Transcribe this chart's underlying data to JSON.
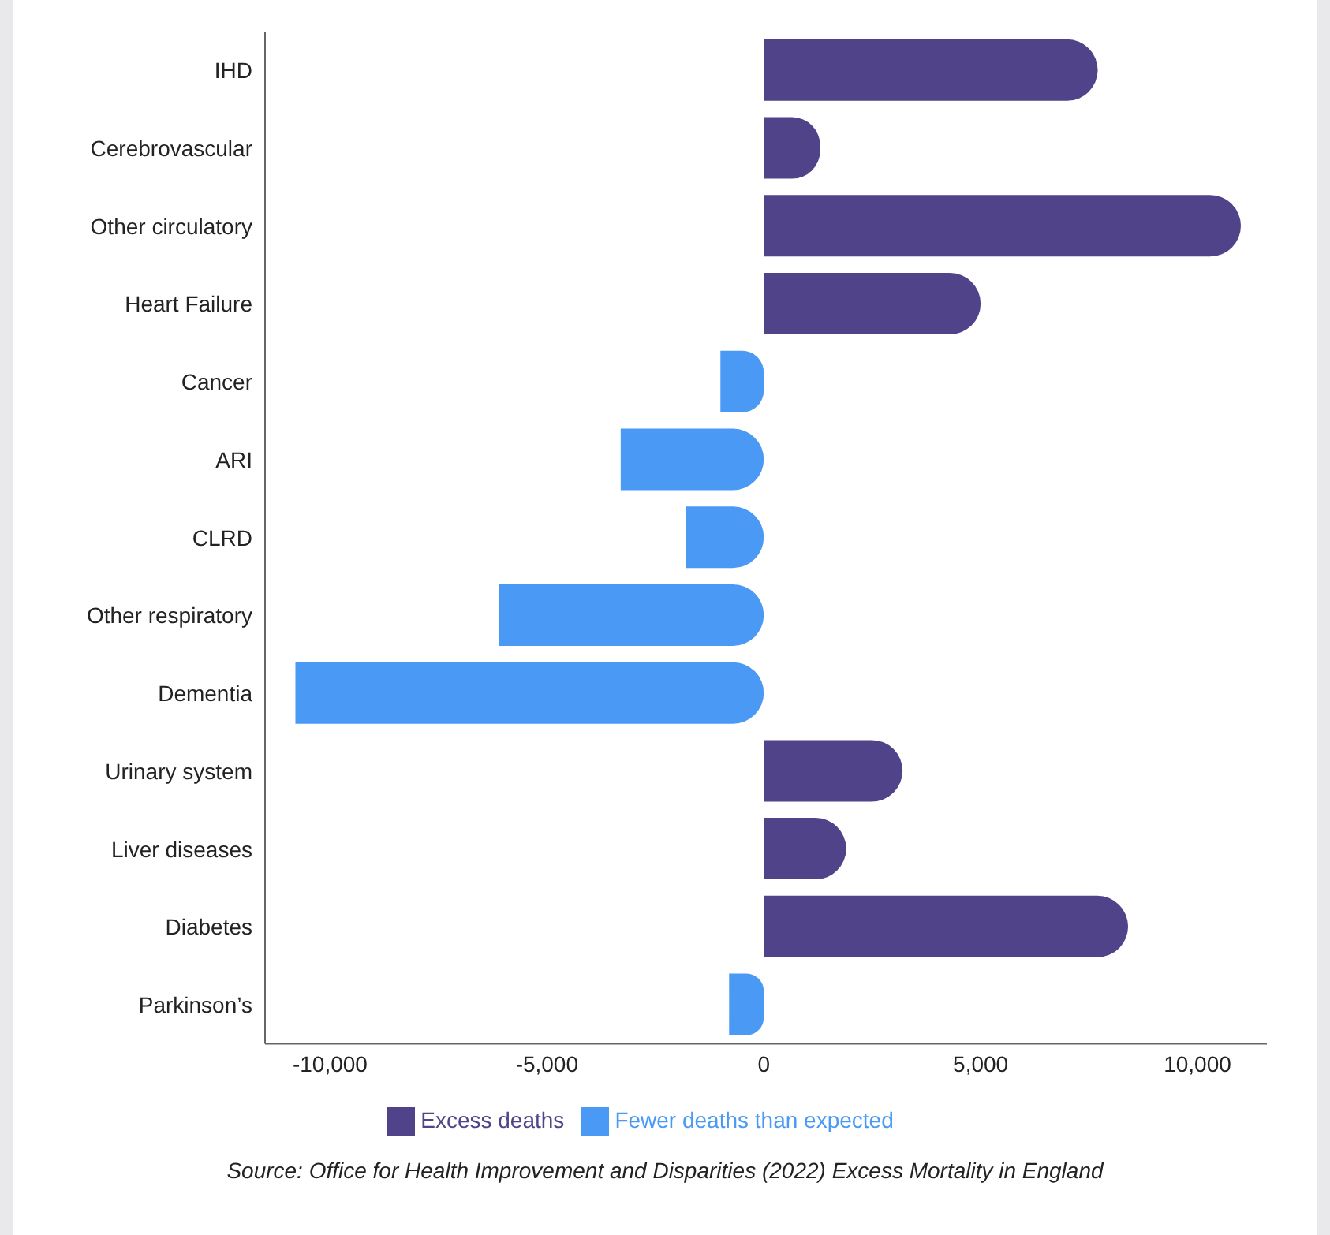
{
  "chart_data": {
    "type": "bar",
    "orientation": "horizontal",
    "stacked": true,
    "categories": [
      "IHD",
      "Cerebrovascular",
      "Other circulatory",
      "Heart Failure",
      "Cancer",
      "ARI",
      "CLRD",
      "Other respiratory",
      "Dementia",
      "Urinary system",
      "Liver diseases",
      "Diabetes",
      "Parkinson’s"
    ],
    "series": [
      {
        "name": "Excess deaths",
        "color": "#51438a",
        "values": [
          7700,
          1300,
          11000,
          5000,
          null,
          null,
          null,
          null,
          null,
          3200,
          1900,
          8400,
          null
        ]
      },
      {
        "name": "Fewer deaths than expected",
        "color": "#4a9af5",
        "values": [
          null,
          null,
          null,
          null,
          -1000,
          -3300,
          -1800,
          -6100,
          -10800,
          null,
          null,
          null,
          -800
        ]
      }
    ],
    "xlim": [
      -11500,
      11600
    ],
    "xticks": [
      {
        "value": -10000,
        "label": "-10,000"
      },
      {
        "value": -5000,
        "label": "-5,000"
      },
      0,
      {
        "value": 5000,
        "label": "5,000"
      },
      {
        "value": 10000,
        "label": "10,000"
      }
    ],
    "grid": false,
    "legend": "bottom",
    "annotations": [
      "Source: Office for Health Improvement and Disparities (2022) Excess Mortality in England"
    ]
  }
}
